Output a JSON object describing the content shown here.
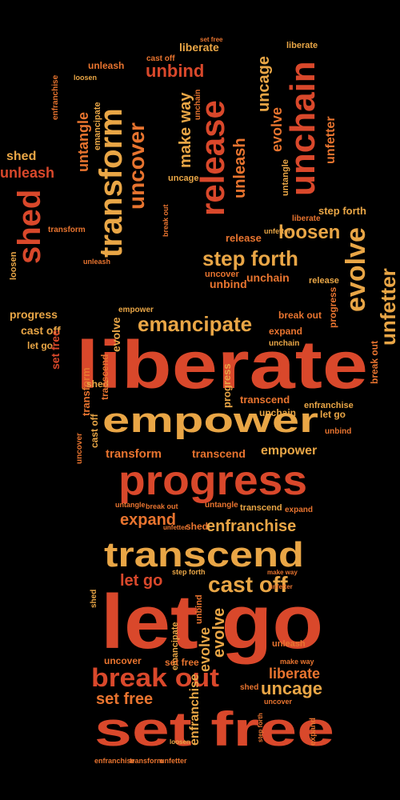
{
  "palette": {
    "background": "#000000",
    "red": "#d9482b",
    "orange": "#e8742f",
    "gold": "#e9a646"
  },
  "words": {
    "liberate": "liberate",
    "empower": "empower",
    "progress": "progress",
    "transcend": "transcend",
    "let_go": "let go",
    "set_free": "set free",
    "break_out": "break out",
    "cast_off": "cast off",
    "emancipate": "emancipate",
    "evolve": "evolve",
    "unfetter": "unfetter",
    "release": "release",
    "unchain": "unchain",
    "transform": "transform",
    "uncover": "uncover",
    "shed": "shed",
    "unbind": "unbind",
    "untangle": "untangle",
    "loosen": "loosen",
    "step_forth": "step forth",
    "enfranchise": "enfranchise",
    "uncage": "uncage",
    "expand": "expand",
    "make_way": "make way",
    "unleash": "unleash"
  }
}
